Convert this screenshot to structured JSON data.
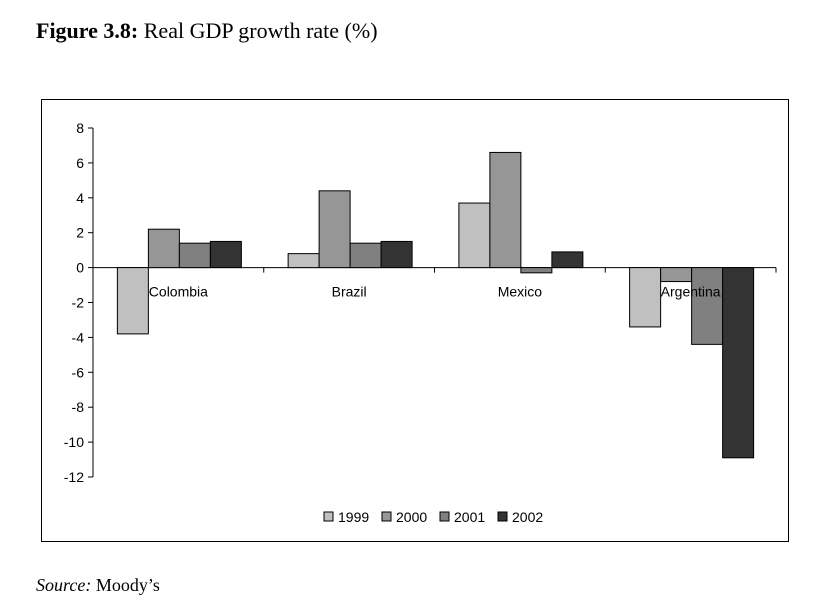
{
  "figure": {
    "label": "Figure 3.8:",
    "caption": "Real GDP growth rate (%)"
  },
  "source": {
    "label": "Source:",
    "text": "Moody’s"
  },
  "chart_data": {
    "type": "bar",
    "title": "Real GDP growth rate (%)",
    "xlabel": "",
    "ylabel": "",
    "categories": [
      "Colombia",
      "Brazil",
      "Mexico",
      "Argentina"
    ],
    "series": [
      {
        "name": "1999",
        "color": "#c0c0c0",
        "values": [
          -3.8,
          0.8,
          3.7,
          -3.4
        ]
      },
      {
        "name": "2000",
        "color": "#969696",
        "values": [
          2.2,
          4.4,
          6.6,
          -0.8
        ]
      },
      {
        "name": "2001",
        "color": "#808080",
        "values": [
          1.4,
          1.4,
          -0.3,
          -4.4
        ]
      },
      {
        "name": "2002",
        "color": "#333333",
        "values": [
          1.5,
          1.5,
          0.9,
          -10.9
        ]
      }
    ],
    "ylim": [
      -12,
      8
    ],
    "yticks": [
      8,
      6,
      4,
      2,
      0,
      -2,
      -4,
      -6,
      -8,
      -10,
      -12
    ],
    "grid": false,
    "legend_position": "bottom"
  }
}
